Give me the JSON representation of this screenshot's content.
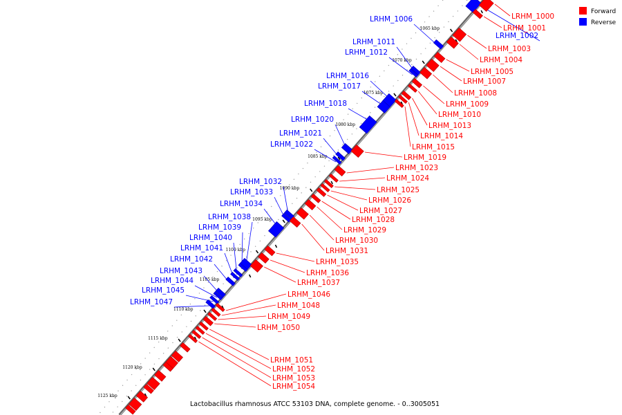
{
  "legend": {
    "forward_label": "Forward",
    "reverse_label": "Reverse",
    "forward_color": "#ff0000",
    "reverse_color": "#0000ff"
  },
  "caption": "Lactobacillus rhamnosus ATCC 53103 DNA, complete genome. - 0..3005051",
  "ticks": [
    "1065 kbp",
    "1070 kbp",
    "1075 kbp",
    "1080 kbp",
    "1085 kbp",
    "1090 kbp",
    "1095 kbp",
    "1100 kbp",
    "1105 kbp",
    "1110 kbp",
    "1115 kbp",
    "1120 kbp",
    "1125 kbp"
  ],
  "reverse_genes": [
    "LRHM_1002",
    "LRHM_1006",
    "LRHM_1011",
    "LRHM_1012",
    "LRHM_1016",
    "LRHM_1017",
    "LRHM_1018",
    "LRHM_1020",
    "LRHM_1021",
    "LRHM_1022",
    "LRHM_1032",
    "LRHM_1033",
    "LRHM_1034",
    "LRHM_1038",
    "LRHM_1039",
    "LRHM_1040",
    "LRHM_1041",
    "LRHM_1042",
    "LRHM_1043",
    "LRHM_1044",
    "LRHM_1045",
    "LRHM_1047"
  ],
  "forward_genes": [
    "LRHM_1000",
    "LRHM_1001",
    "LRHM_1003",
    "LRHM_1004",
    "LRHM_1005",
    "LRHM_1007",
    "LRHM_1008",
    "LRHM_1009",
    "LRHM_1010",
    "LRHM_1013",
    "LRHM_1014",
    "LRHM_1015",
    "LRHM_1019",
    "LRHM_1023",
    "LRHM_1024",
    "LRHM_1025",
    "LRHM_1026",
    "LRHM_1027",
    "LRHM_1028",
    "LRHM_1029",
    "LRHM_1030",
    "LRHM_1031",
    "LRHM_1035",
    "LRHM_1036",
    "LRHM_1037",
    "LRHM_1046",
    "LRHM_1048",
    "LRHM_1049",
    "LRHM_1050",
    "LRHM_1051",
    "LRHM_1052",
    "LRHM_1053",
    "LRHM_1054"
  ]
}
